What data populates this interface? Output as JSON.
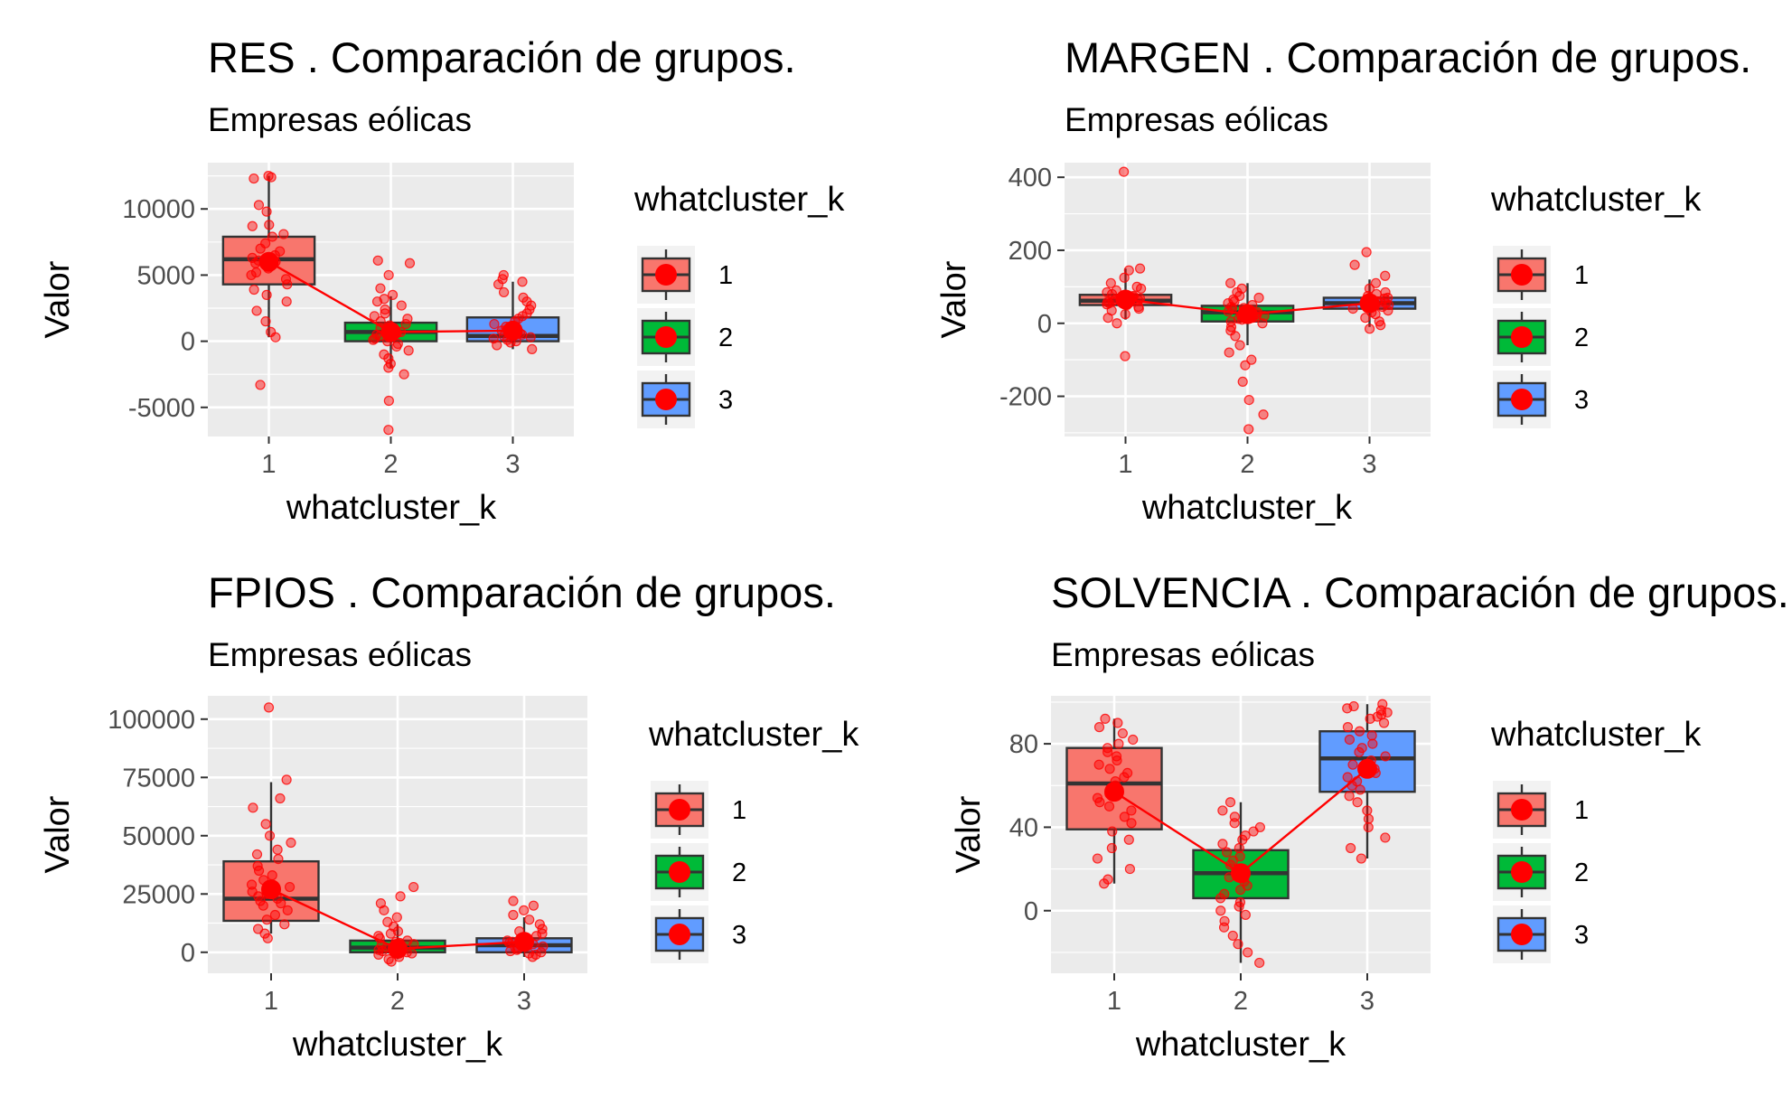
{
  "colors": {
    "panel_bg": "#ebebeb",
    "grid": "#ffffff",
    "box_outline": "#333333",
    "points": "#ff0000",
    "mean_line": "#ff0000",
    "group_fills": [
      "#f8766d",
      "#00ba38",
      "#619cff"
    ]
  },
  "chart_data": [
    {
      "type": "box",
      "title": "RES . Comparación de grupos.",
      "subtitle": "Empresas eólicas",
      "xlabel": "whatcluster_k",
      "ylabel": "Valor",
      "categories": [
        "1",
        "2",
        "3"
      ],
      "yticks": [
        -5000,
        0,
        5000,
        10000
      ],
      "ytick_labels": [
        "-5000",
        "0",
        "5000",
        "10000"
      ],
      "ylim": [
        -7200,
        13500
      ],
      "grid": true,
      "legend": {
        "title": "whatcluster_k",
        "position": "right",
        "labels": [
          "1",
          "2",
          "3"
        ]
      },
      "boxes": [
        {
          "q1": 4300,
          "median": 6200,
          "q3": 7900,
          "whisker_low": 300,
          "whisker_high": 12500
        },
        {
          "q1": 0,
          "median": 700,
          "q3": 1400,
          "whisker_low": -2000,
          "whisker_high": 3400
        },
        {
          "q1": 0,
          "median": 400,
          "q3": 1800,
          "whisker_low": -600,
          "whisker_high": 4500
        }
      ],
      "means": [
        6000,
        700,
        800
      ],
      "points": [
        [
          12500,
          12400,
          12300,
          10300,
          9800,
          8800,
          8700,
          8100,
          7900,
          7400,
          7000,
          6800,
          6500,
          6300,
          6200,
          6100,
          6000,
          5900,
          5700,
          5500,
          5200,
          5000,
          4700,
          4300,
          3900,
          3500,
          3000,
          2300,
          1500,
          700,
          300,
          -3300
        ],
        [
          6100,
          5900,
          5000,
          4000,
          3500,
          3200,
          3000,
          2700,
          2400,
          2100,
          1900,
          1700,
          1500,
          1300,
          1200,
          1000,
          900,
          800,
          700,
          600,
          500,
          400,
          300,
          200,
          100,
          0,
          -200,
          -400,
          -700,
          -1000,
          -1300,
          -1700,
          -2000,
          -2500,
          -4500,
          -6700
        ],
        [
          5000,
          4700,
          4500,
          4300,
          3700,
          3300,
          3000,
          2700,
          2400,
          2100,
          1900,
          1700,
          1500,
          1300,
          1100,
          900,
          800,
          700,
          600,
          500,
          400,
          300,
          200,
          100,
          0,
          -100,
          -300,
          -600
        ]
      ]
    },
    {
      "type": "box",
      "title": "MARGEN . Comparación de grupos.",
      "subtitle": "Empresas eólicas",
      "xlabel": "whatcluster_k",
      "ylabel": "Valor",
      "categories": [
        "1",
        "2",
        "3"
      ],
      "yticks": [
        -200,
        0,
        200,
        400
      ],
      "ytick_labels": [
        "-200",
        "0",
        "200",
        "400"
      ],
      "ylim": [
        -310,
        440
      ],
      "grid": true,
      "legend": {
        "title": "whatcluster_k",
        "position": "right",
        "labels": [
          "1",
          "2",
          "3"
        ]
      },
      "boxes": [
        {
          "q1": 50,
          "median": 62,
          "q3": 78,
          "whisker_low": 10,
          "whisker_high": 150
        },
        {
          "q1": 5,
          "median": 30,
          "q3": 48,
          "whisker_low": -60,
          "whisker_high": 110
        },
        {
          "q1": 40,
          "median": 55,
          "q3": 70,
          "whisker_low": -10,
          "whisker_high": 120
        }
      ],
      "means": [
        65,
        25,
        55
      ],
      "points": [
        [
          415,
          150,
          145,
          125,
          110,
          100,
          95,
          90,
          85,
          80,
          75,
          72,
          70,
          68,
          65,
          63,
          60,
          58,
          55,
          52,
          50,
          45,
          40,
          35,
          25,
          15,
          0,
          -90
        ],
        [
          110,
          95,
          85,
          75,
          70,
          65,
          60,
          55,
          50,
          45,
          42,
          40,
          38,
          35,
          32,
          30,
          28,
          25,
          22,
          20,
          18,
          15,
          12,
          10,
          5,
          0,
          -10,
          -20,
          -35,
          -60,
          -80,
          -100,
          -115,
          -160,
          -210,
          -250,
          -290
        ],
        [
          195,
          160,
          130,
          110,
          95,
          85,
          80,
          75,
          70,
          68,
          65,
          62,
          60,
          58,
          55,
          52,
          50,
          48,
          45,
          42,
          40,
          35,
          30,
          25,
          15,
          5,
          -5,
          -15
        ]
      ]
    },
    {
      "type": "box",
      "title": "FPIOS . Comparación de grupos.",
      "subtitle": "Empresas eólicas",
      "xlabel": "whatcluster_k",
      "ylabel": "Valor",
      "categories": [
        "1",
        "2",
        "3"
      ],
      "yticks": [
        0,
        25000,
        50000,
        75000,
        100000
      ],
      "ytick_labels": [
        "0",
        "25000",
        "50000",
        "75000",
        "100000"
      ],
      "ylim": [
        -9000,
        110000
      ],
      "grid": true,
      "legend": {
        "title": "whatcluster_k",
        "position": "right",
        "labels": [
          "1",
          "2",
          "3"
        ]
      },
      "boxes": [
        {
          "q1": 13500,
          "median": 23000,
          "q3": 39000,
          "whisker_low": 8000,
          "whisker_high": 73000
        },
        {
          "q1": 0,
          "median": 2000,
          "q3": 5000,
          "whisker_low": -3000,
          "whisker_high": 12000
        },
        {
          "q1": 0,
          "median": 3000,
          "q3": 6000,
          "whisker_low": -2000,
          "whisker_high": 15000
        }
      ],
      "means": [
        27000,
        1500,
        4500
      ],
      "points": [
        [
          105000,
          74000,
          66000,
          62000,
          55000,
          50000,
          47000,
          44000,
          42000,
          40000,
          37000,
          35000,
          33000,
          31000,
          29000,
          28000,
          27000,
          26000,
          25000,
          24000,
          23000,
          22000,
          21000,
          20000,
          18000,
          16000,
          14000,
          12000,
          10000,
          8000,
          6000
        ],
        [
          28000,
          24000,
          21000,
          18000,
          15000,
          13000,
          11000,
          9000,
          8000,
          7000,
          6000,
          5000,
          4500,
          4000,
          3500,
          3000,
          2500,
          2000,
          1500,
          1000,
          500,
          0,
          -500,
          -1000,
          -2000,
          -3000,
          -4000
        ],
        [
          22000,
          20000,
          18000,
          16000,
          14000,
          12000,
          10000,
          9000,
          8000,
          7000,
          6000,
          5000,
          4500,
          4000,
          3500,
          3000,
          2500,
          2000,
          1500,
          1000,
          500,
          0,
          -500,
          -1000,
          -2000
        ]
      ]
    },
    {
      "type": "box",
      "title": "SOLVENCIA . Comparación de grupos.",
      "subtitle": "Empresas eólicas",
      "xlabel": "whatcluster_k",
      "ylabel": "Valor",
      "categories": [
        "1",
        "2",
        "3"
      ],
      "yticks": [
        0,
        40,
        80
      ],
      "ytick_labels": [
        "0",
        "40",
        "80"
      ],
      "ylim": [
        -30,
        103
      ],
      "grid": true,
      "legend": {
        "title": "whatcluster_k",
        "position": "right",
        "labels": [
          "1",
          "2",
          "3"
        ]
      },
      "boxes": [
        {
          "q1": 39,
          "median": 61,
          "q3": 78,
          "whisker_low": 13,
          "whisker_high": 92
        },
        {
          "q1": 6,
          "median": 18,
          "q3": 29,
          "whisker_low": -25,
          "whisker_high": 52
        },
        {
          "q1": 57,
          "median": 73,
          "q3": 86,
          "whisker_low": 25,
          "whisker_high": 99
        }
      ],
      "means": [
        57,
        18,
        68
      ],
      "points": [
        [
          92,
          90,
          88,
          85,
          82,
          80,
          78,
          76,
          74,
          72,
          70,
          68,
          66,
          64,
          62,
          60,
          58,
          56,
          54,
          52,
          50,
          48,
          45,
          42,
          38,
          34,
          30,
          25,
          20,
          15,
          13
        ],
        [
          52,
          48,
          45,
          42,
          40,
          38,
          36,
          34,
          32,
          30,
          28,
          26,
          24,
          22,
          20,
          18,
          16,
          14,
          12,
          10,
          8,
          6,
          4,
          2,
          0,
          -2,
          -5,
          -8,
          -12,
          -16,
          -20,
          -25
        ],
        [
          99,
          98,
          97,
          96,
          95,
          94,
          93,
          92,
          90,
          88,
          86,
          84,
          82,
          80,
          78,
          76,
          74,
          72,
          70,
          68,
          66,
          64,
          62,
          60,
          58,
          55,
          52,
          48,
          44,
          40,
          35,
          30,
          25
        ]
      ]
    }
  ]
}
